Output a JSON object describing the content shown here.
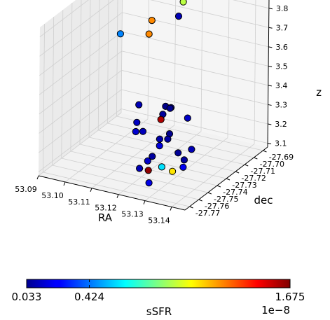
{
  "chart_data": {
    "type": "scatter",
    "projection": "3d",
    "xlabel": "RA",
    "ylabel": "dec",
    "zlabel": "z",
    "x_ticks": [
      "53.14",
      "53.13",
      "53.12",
      "53.11",
      "53.10",
      "53.09"
    ],
    "y_ticks": [
      "-27.77",
      "-27.76",
      "-27.75",
      "-27.74",
      "-27.73",
      "-27.72",
      "-27.71",
      "-27.70",
      "-27.69"
    ],
    "z_ticks": [
      "3.1",
      "3.2",
      "3.3",
      "3.4",
      "3.5",
      "3.6",
      "3.7",
      "3.8"
    ],
    "xlim": [
      53.09,
      53.145
    ],
    "ylim": [
      -27.775,
      -27.685
    ],
    "zlim": [
      3.08,
      3.85
    ],
    "grid": true,
    "colormap": "jet",
    "colorbar": {
      "label": "sSFR",
      "tick_labels": [
        "0.033",
        "0.424",
        "1.675"
      ],
      "tick_values": [
        0.033,
        0.424,
        1.675
      ],
      "range": [
        0.033,
        1.675
      ],
      "offset_text": "1e−8",
      "orientation": "horizontal"
    },
    "points": [
      {
        "x": 53.118,
        "y": -27.7,
        "z": 3.8,
        "c": 0.95
      },
      {
        "x": 53.117,
        "y": -27.702,
        "z": 3.73,
        "c": 0.12
      },
      {
        "x": 53.108,
        "y": -27.705,
        "z": 3.69,
        "c": 1.25
      },
      {
        "x": 53.108,
        "y": -27.708,
        "z": 3.63,
        "c": 1.25
      },
      {
        "x": 53.099,
        "y": -27.713,
        "z": 3.62,
        "c": 0.45
      },
      {
        "x": 53.132,
        "y": -27.735,
        "z": 3.37,
        "c": 0.15
      },
      {
        "x": 53.124,
        "y": -27.73,
        "z": 3.38,
        "c": 0.1
      },
      {
        "x": 53.124,
        "y": -27.731,
        "z": 3.38,
        "c": 0.06
      },
      {
        "x": 53.122,
        "y": -27.73,
        "z": 3.38,
        "c": 0.05
      },
      {
        "x": 53.122,
        "y": -27.733,
        "z": 3.35,
        "c": 0.08
      },
      {
        "x": 53.122,
        "y": -27.735,
        "z": 3.33,
        "c": 1.6
      },
      {
        "x": 53.113,
        "y": -27.733,
        "z": 3.37,
        "c": 0.12
      },
      {
        "x": 53.114,
        "y": -27.738,
        "z": 3.3,
        "c": 0.14
      },
      {
        "x": 53.115,
        "y": -27.742,
        "z": 3.27,
        "c": 0.16
      },
      {
        "x": 53.117,
        "y": -27.74,
        "z": 3.27,
        "c": 0.13
      },
      {
        "x": 53.127,
        "y": -27.74,
        "z": 3.29,
        "c": 0.06
      },
      {
        "x": 53.127,
        "y": -27.742,
        "z": 3.27,
        "c": 0.09
      },
      {
        "x": 53.137,
        "y": -27.745,
        "z": 3.26,
        "c": 0.12
      },
      {
        "x": 53.133,
        "y": -27.748,
        "z": 3.24,
        "c": 0.07
      },
      {
        "x": 53.136,
        "y": -27.75,
        "z": 3.22,
        "c": 0.08
      },
      {
        "x": 53.124,
        "y": -27.742,
        "z": 3.26,
        "c": 0.1
      },
      {
        "x": 53.125,
        "y": -27.745,
        "z": 3.24,
        "c": 0.18
      },
      {
        "x": 53.124,
        "y": -27.75,
        "z": 3.2,
        "c": 0.08
      },
      {
        "x": 53.123,
        "y": -27.752,
        "z": 3.18,
        "c": 0.15
      },
      {
        "x": 53.137,
        "y": -27.754,
        "z": 3.2,
        "c": 0.22
      },
      {
        "x": 53.134,
        "y": -27.757,
        "z": 3.18,
        "c": 1.1
      },
      {
        "x": 53.13,
        "y": -27.757,
        "z": 3.19,
        "c": 0.6
      },
      {
        "x": 53.126,
        "y": -27.76,
        "z": 3.17,
        "c": 1.65
      },
      {
        "x": 53.122,
        "y": -27.758,
        "z": 3.16,
        "c": 0.12
      },
      {
        "x": 53.128,
        "y": -27.765,
        "z": 3.13,
        "c": 0.2
      }
    ]
  }
}
